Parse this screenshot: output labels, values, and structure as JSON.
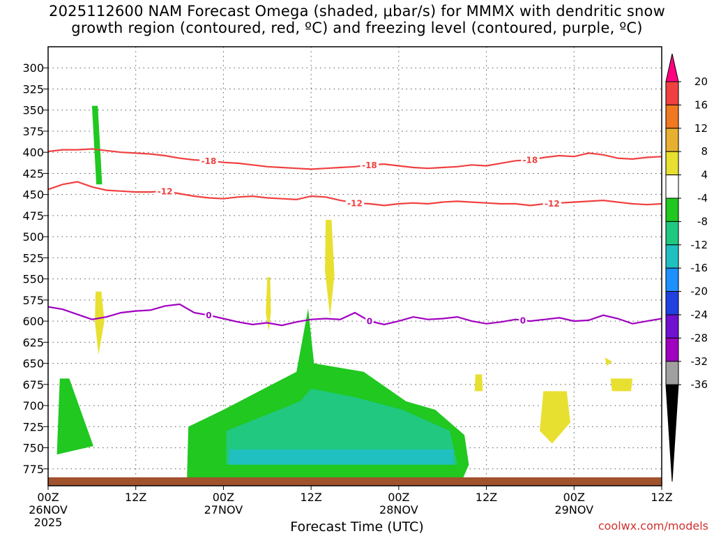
{
  "title": {
    "line1": "2025112600 NAM Forecast Omega (shaded, μbar/s) for MMMX with dendritic snow",
    "line2": "growth region (contoured, red, ºC) and freezing level (contoured, purple, ºC)"
  },
  "credit": "coolwx.com/models",
  "chart_data": {
    "type": "time-height cross section",
    "xlabel": "Forecast Time (UTC)",
    "ylabel": "",
    "x_hours": [
      0,
      12,
      24,
      36,
      48,
      60,
      72,
      84
    ],
    "x_ticks": [
      {
        "h": 0,
        "l1": "00Z",
        "l2": "26NOV",
        "l3": "2025"
      },
      {
        "h": 12,
        "l1": "12Z",
        "l2": "",
        "l3": ""
      },
      {
        "h": 24,
        "l1": "00Z",
        "l2": "27NOV",
        "l3": ""
      },
      {
        "h": 36,
        "l1": "12Z",
        "l2": "",
        "l3": ""
      },
      {
        "h": 48,
        "l1": "00Z",
        "l2": "28NOV",
        "l3": ""
      },
      {
        "h": 60,
        "l1": "12Z",
        "l2": "",
        "l3": ""
      },
      {
        "h": 72,
        "l1": "00Z",
        "l2": "29NOV",
        "l3": ""
      },
      {
        "h": 84,
        "l1": "12Z",
        "l2": "",
        "l3": ""
      }
    ],
    "xlim": [
      0,
      84
    ],
    "ylim": [
      275,
      795
    ],
    "y_ticks": [
      300,
      325,
      350,
      375,
      400,
      425,
      450,
      475,
      500,
      525,
      550,
      575,
      600,
      625,
      650,
      675,
      700,
      725,
      750,
      775
    ],
    "grid": true,
    "colorbar": {
      "ticks": [
        "20",
        "16",
        "12",
        "8",
        "4",
        "-4",
        "-8",
        "-12",
        "-16",
        "-20",
        "-24",
        "-28",
        "-32",
        "-36"
      ],
      "colors": [
        "#ff0080",
        "#f04040",
        "#f07820",
        "#e8b030",
        "#e8e030",
        "#ffffff",
        "#20c820",
        "#20c880",
        "#20c0c0",
        "#1e90ff",
        "#2040e0",
        "#7010d0",
        "#a000c0",
        "#a0a0a0",
        "#000000"
      ]
    },
    "contours": [
      {
        "label": "-18",
        "color": "#f04040",
        "value": -18,
        "h": [
          0,
          2,
          4,
          6,
          8,
          10,
          12,
          14,
          16,
          18,
          20,
          22,
          24,
          26,
          28,
          30,
          32,
          34,
          36,
          38,
          40,
          42,
          44,
          46,
          48,
          50,
          52,
          54,
          56,
          58,
          60,
          62,
          64,
          66,
          68,
          70,
          72,
          74,
          76,
          78,
          80,
          82,
          84
        ],
        "p": [
          399,
          397,
          397,
          396,
          398,
          400,
          401,
          402,
          404,
          407,
          409,
          410,
          412,
          413,
          415,
          417,
          418,
          419,
          420,
          419,
          418,
          417,
          415,
          414,
          416,
          418,
          419,
          418,
          417,
          415,
          416,
          413,
          410,
          409,
          406,
          404,
          405,
          401,
          403,
          407,
          408,
          406,
          405
        ],
        "label_h": [
          22,
          44,
          66
        ]
      },
      {
        "label": "-12",
        "color": "#f04040",
        "value": -12,
        "h": [
          0,
          2,
          4,
          6,
          8,
          10,
          12,
          14,
          16,
          18,
          20,
          22,
          24,
          26,
          28,
          30,
          32,
          34,
          36,
          38,
          40,
          42,
          44,
          46,
          48,
          50,
          52,
          54,
          56,
          58,
          60,
          62,
          64,
          66,
          68,
          70,
          72,
          74,
          76,
          78,
          80,
          82,
          84
        ],
        "p": [
          444,
          438,
          435,
          441,
          445,
          446,
          447,
          447,
          446,
          449,
          452,
          454,
          455,
          453,
          452,
          454,
          455,
          456,
          452,
          453,
          457,
          460,
          461,
          463,
          461,
          460,
          461,
          459,
          458,
          459,
          460,
          461,
          461,
          463,
          461,
          460,
          459,
          458,
          457,
          459,
          461,
          462,
          461
        ],
        "label_h": [
          16,
          42,
          69
        ]
      },
      {
        "label": "0",
        "color": "#a000c0",
        "value": 0,
        "h": [
          0,
          2,
          4,
          6,
          8,
          10,
          12,
          14,
          16,
          18,
          20,
          22,
          24,
          26,
          28,
          30,
          32,
          34,
          36,
          38,
          40,
          42,
          44,
          46,
          48,
          50,
          52,
          54,
          56,
          58,
          60,
          62,
          64,
          66,
          68,
          70,
          72,
          74,
          76,
          78,
          80,
          82,
          84
        ],
        "p": [
          583,
          586,
          592,
          598,
          595,
          590,
          588,
          587,
          582,
          580,
          590,
          593,
          597,
          601,
          604,
          602,
          605,
          601,
          598,
          597,
          598,
          590,
          600,
          604,
          600,
          595,
          598,
          597,
          595,
          600,
          603,
          601,
          598,
          600,
          598,
          596,
          600,
          599,
          593,
          597,
          603,
          600,
          597
        ],
        "label_h": [
          22,
          44,
          65
        ]
      }
    ],
    "shaded_regions": [
      {
        "value": -6,
        "color": "#20c820",
        "h": [
          6.0,
          6.8,
          7.4,
          6.6
        ],
        "p": [
          345,
          345,
          438,
          438
        ]
      },
      {
        "value": -6,
        "color": "#20c820",
        "h": [
          1.6,
          2.9,
          6.2,
          1.2
        ],
        "p": [
          668,
          668,
          748,
          758
        ]
      },
      {
        "value": -6,
        "color": "#20c820",
        "h": [
          19.2,
          24.0,
          34.0,
          35.6,
          36.4,
          43.2,
          49.0,
          53.0,
          57.0,
          57.6,
          56.6,
          19.0
        ],
        "p": [
          725,
          705,
          660,
          585,
          650,
          660,
          695,
          705,
          735,
          770,
          790,
          790
        ]
      },
      {
        "value": -10,
        "color": "#20c880",
        "h": [
          24.4,
          34.5,
          36.0,
          42.0,
          48.5,
          55.0,
          56.0,
          24.4
        ],
        "p": [
          730,
          695,
          680,
          690,
          705,
          730,
          770,
          770
        ]
      },
      {
        "value": -14,
        "color": "#20c0c0",
        "h": [
          24.8,
          55.5,
          55.5,
          24.8
        ],
        "p": [
          752,
          752,
          770,
          770
        ]
      },
      {
        "value": 4,
        "color": "#e8e030",
        "h": [
          6.5,
          7.3,
          7.7,
          6.9,
          6.4
        ],
        "p": [
          565,
          565,
          600,
          640,
          600
        ]
      },
      {
        "value": 4,
        "color": "#e8e030",
        "h": [
          38.0,
          38.8,
          39.2,
          38.6,
          37.9
        ],
        "p": [
          480,
          480,
          545,
          595,
          540
        ]
      },
      {
        "value": 4,
        "color": "#e8e030",
        "h": [
          30.0,
          30.4,
          30.5,
          30.2,
          29.8
        ],
        "p": [
          548,
          548,
          590,
          612,
          590
        ]
      },
      {
        "value": 4,
        "color": "#e8e030",
        "h": [
          58.5,
          59.4,
          59.5,
          58.4
        ],
        "p": [
          663,
          663,
          683,
          683
        ]
      },
      {
        "value": 4,
        "color": "#e8e030",
        "h": [
          67.8,
          71.0,
          71.5,
          69.0,
          67.3
        ],
        "p": [
          683,
          683,
          720,
          745,
          730
        ]
      },
      {
        "value": 4,
        "color": "#e8e030",
        "h": [
          76.2,
          77.2,
          76.5
        ],
        "p": [
          643,
          648,
          653
        ]
      },
      {
        "value": 4,
        "color": "#e8e030",
        "h": [
          77.0,
          80.0,
          79.8,
          77.2
        ],
        "p": [
          668,
          668,
          683,
          683
        ]
      }
    ],
    "terrain": {
      "color": "#a0522d",
      "p": 785
    }
  }
}
